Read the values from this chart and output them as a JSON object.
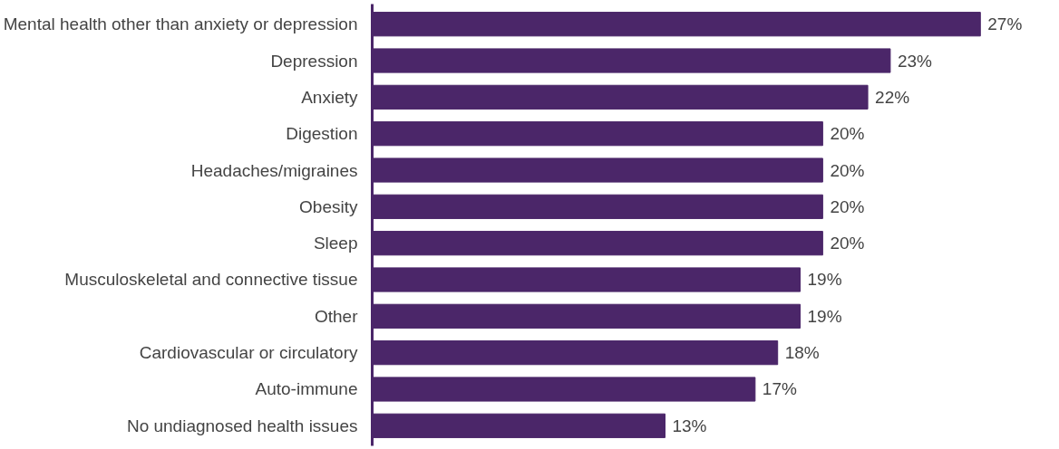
{
  "chart_data": {
    "type": "bar",
    "orientation": "horizontal",
    "categories": [
      "Mental health other than anxiety or depression",
      "Depression",
      "Anxiety",
      "Digestion",
      "Headaches/migraines",
      "Obesity",
      "Sleep",
      "Musculoskeletal and connective tissue",
      "Other",
      "Cardiovascular or circulatory",
      "Auto-immune",
      "No undiagnosed health issues"
    ],
    "values": [
      27,
      23,
      22,
      20,
      20,
      20,
      20,
      19,
      19,
      18,
      17,
      13
    ],
    "color": "#4b2669",
    "value_labels": [
      "27%",
      "23%",
      "22%",
      "20%",
      "20%",
      "20%",
      "20%",
      "19%",
      "19%",
      "18%",
      "17%",
      "13%"
    ],
    "tick_labels": "y",
    "grid": false
  }
}
